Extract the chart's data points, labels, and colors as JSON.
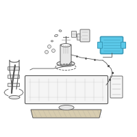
{
  "bg_color": "#ffffff",
  "line_color": "#999999",
  "line_color_dark": "#555555",
  "highlight_fill": "#5bc8e8",
  "highlight_edge": "#3a9ab8",
  "fill_light": "#f5f5f5",
  "fill_mid": "#e8e8e8",
  "fill_tan": "#d8cdb0"
}
